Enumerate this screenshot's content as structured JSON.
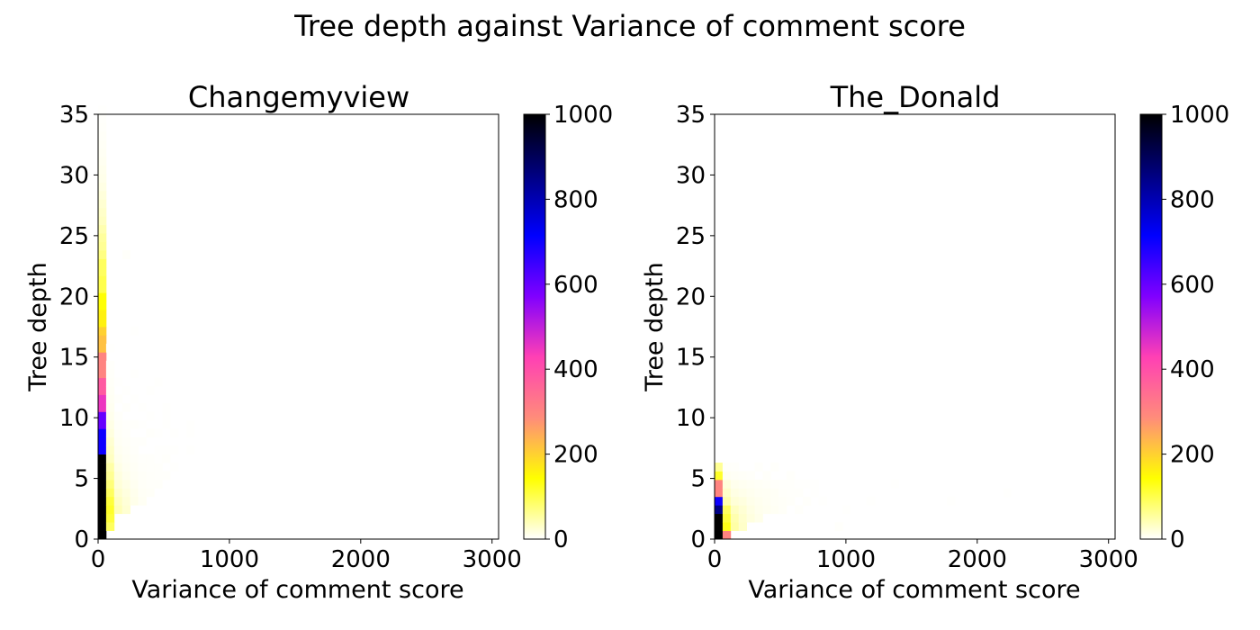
{
  "figure": {
    "title": "Tree depth against Variance of comment score"
  },
  "colormap": {
    "name": "gnuplot2_r",
    "stops": [
      "#ffffff",
      "#ffff00",
      "#ff8c7a",
      "#ff40b4",
      "#8000ff",
      "#0000ff",
      "#000080",
      "#000000"
    ]
  },
  "chart_data": [
    {
      "type": "heatmap",
      "title": "Changemyview",
      "xlabel": "Variance of comment score",
      "ylabel": "Tree depth",
      "xlim": [
        0,
        3050
      ],
      "ylim": [
        0,
        35
      ],
      "x_ticks": [
        0,
        1000,
        2000,
        3000
      ],
      "y_ticks": [
        0,
        5,
        10,
        15,
        20,
        25,
        30,
        35
      ],
      "colorbar": {
        "vmin": 0,
        "vmax": 1000,
        "ticks": [
          0,
          200,
          400,
          600,
          800,
          1000
        ]
      },
      "bin": {
        "dx": 61,
        "dy": 0.7
      },
      "cells": [
        [
          0,
          0,
          1000
        ],
        [
          0,
          1,
          1000
        ],
        [
          0,
          2,
          1000
        ],
        [
          0,
          3,
          1000
        ],
        [
          0,
          4,
          1000
        ],
        [
          0,
          5,
          1000
        ],
        [
          0,
          6,
          1000
        ],
        [
          0,
          7,
          1000
        ],
        [
          0,
          8,
          1000
        ],
        [
          0,
          9,
          1000
        ],
        [
          0,
          10,
          700
        ],
        [
          0,
          11,
          700
        ],
        [
          0,
          12,
          700
        ],
        [
          0,
          13,
          600
        ],
        [
          0,
          14,
          600
        ],
        [
          0,
          15,
          450
        ],
        [
          0,
          16,
          450
        ],
        [
          0,
          17,
          380
        ],
        [
          0,
          18,
          380
        ],
        [
          0,
          19,
          300
        ],
        [
          0,
          20,
          300
        ],
        [
          0,
          21,
          300
        ],
        [
          0,
          22,
          220
        ],
        [
          0,
          23,
          220
        ],
        [
          0,
          24,
          200
        ],
        [
          0,
          25,
          160
        ],
        [
          0,
          26,
          160
        ],
        [
          0,
          27,
          140
        ],
        [
          0,
          28,
          140
        ],
        [
          0,
          29,
          100
        ],
        [
          0,
          30,
          100
        ],
        [
          0,
          31,
          90
        ],
        [
          0,
          32,
          90
        ],
        [
          0,
          33,
          70
        ],
        [
          0,
          34,
          60
        ],
        [
          0,
          35,
          55
        ],
        [
          0,
          36,
          45
        ],
        [
          0,
          37,
          35
        ],
        [
          0,
          38,
          30
        ],
        [
          0,
          39,
          25
        ],
        [
          0,
          40,
          20
        ],
        [
          0,
          41,
          15
        ],
        [
          0,
          42,
          12
        ],
        [
          0,
          43,
          10
        ],
        [
          0,
          44,
          8
        ],
        [
          0,
          45,
          6
        ],
        [
          0,
          46,
          5
        ],
        [
          0,
          47,
          4
        ],
        [
          0,
          48,
          3
        ],
        [
          0,
          49,
          2
        ],
        [
          0,
          50,
          1
        ],
        [
          1,
          1,
          90
        ],
        [
          1,
          2,
          110
        ],
        [
          1,
          3,
          120
        ],
        [
          1,
          4,
          110
        ],
        [
          1,
          5,
          90
        ],
        [
          1,
          6,
          75
        ],
        [
          1,
          7,
          60
        ],
        [
          1,
          8,
          50
        ],
        [
          1,
          9,
          35
        ],
        [
          1,
          10,
          30
        ],
        [
          1,
          11,
          25
        ],
        [
          1,
          12,
          18
        ],
        [
          1,
          13,
          14
        ],
        [
          1,
          14,
          10
        ],
        [
          1,
          15,
          8
        ],
        [
          1,
          16,
          6
        ],
        [
          1,
          17,
          5
        ],
        [
          1,
          18,
          4
        ],
        [
          1,
          19,
          3
        ],
        [
          1,
          20,
          2
        ],
        [
          1,
          22,
          1
        ],
        [
          2,
          3,
          40
        ],
        [
          2,
          4,
          35
        ],
        [
          2,
          5,
          28
        ],
        [
          2,
          6,
          22
        ],
        [
          2,
          7,
          18
        ],
        [
          2,
          8,
          14
        ],
        [
          2,
          9,
          10
        ],
        [
          2,
          10,
          8
        ],
        [
          2,
          11,
          6
        ],
        [
          2,
          12,
          5
        ],
        [
          2,
          13,
          4
        ],
        [
          2,
          14,
          3
        ],
        [
          2,
          16,
          2
        ],
        [
          2,
          18,
          1
        ],
        [
          3,
          3,
          25
        ],
        [
          3,
          4,
          22
        ],
        [
          3,
          5,
          18
        ],
        [
          3,
          6,
          14
        ],
        [
          3,
          7,
          10
        ],
        [
          3,
          8,
          8
        ],
        [
          3,
          9,
          6
        ],
        [
          3,
          10,
          5
        ],
        [
          3,
          11,
          4
        ],
        [
          3,
          12,
          3
        ],
        [
          3,
          13,
          2
        ],
        [
          3,
          15,
          2
        ],
        [
          3,
          17,
          1
        ],
        [
          3,
          33,
          3
        ],
        [
          4,
          4,
          12
        ],
        [
          4,
          5,
          10
        ],
        [
          4,
          6,
          8
        ],
        [
          4,
          7,
          6
        ],
        [
          4,
          8,
          5
        ],
        [
          4,
          9,
          4
        ],
        [
          4,
          10,
          3
        ],
        [
          4,
          11,
          2
        ],
        [
          4,
          13,
          2
        ],
        [
          4,
          16,
          1
        ],
        [
          4,
          19,
          1
        ],
        [
          4,
          24,
          1
        ],
        [
          5,
          4,
          6
        ],
        [
          5,
          5,
          5
        ],
        [
          5,
          6,
          4
        ],
        [
          5,
          7,
          4
        ],
        [
          5,
          8,
          3
        ],
        [
          5,
          9,
          2
        ],
        [
          5,
          11,
          2
        ],
        [
          5,
          13,
          1
        ],
        [
          5,
          15,
          1
        ],
        [
          6,
          5,
          4
        ],
        [
          6,
          6,
          3
        ],
        [
          6,
          7,
          3
        ],
        [
          6,
          8,
          2
        ],
        [
          6,
          9,
          2
        ],
        [
          6,
          12,
          2
        ],
        [
          6,
          14,
          1
        ],
        [
          6,
          17,
          1
        ],
        [
          7,
          6,
          3
        ],
        [
          7,
          7,
          2
        ],
        [
          7,
          8,
          2
        ],
        [
          7,
          9,
          1
        ],
        [
          7,
          10,
          1
        ],
        [
          7,
          12,
          1
        ],
        [
          7,
          18,
          1
        ],
        [
          8,
          7,
          2
        ],
        [
          8,
          9,
          2
        ],
        [
          8,
          10,
          1
        ],
        [
          8,
          13,
          1
        ],
        [
          8,
          14,
          1
        ],
        [
          8,
          15,
          1
        ],
        [
          9,
          8,
          1
        ],
        [
          9,
          10,
          1
        ],
        [
          9,
          12,
          1
        ],
        [
          11,
          10,
          1
        ],
        [
          11,
          12,
          1
        ],
        [
          11,
          13,
          1
        ]
      ]
    },
    {
      "type": "heatmap",
      "title": "The_Donald",
      "xlabel": "Variance of comment score",
      "ylabel": "Tree depth",
      "xlim": [
        0,
        3050
      ],
      "ylim": [
        0,
        35
      ],
      "x_ticks": [
        0,
        1000,
        2000,
        3000
      ],
      "y_ticks": [
        0,
        5,
        10,
        15,
        20,
        25,
        30,
        35
      ],
      "colorbar": {
        "vmin": 0,
        "vmax": 1000,
        "ticks": [
          0,
          200,
          400,
          600,
          800,
          1000
        ]
      },
      "bin": {
        "dx": 61,
        "dy": 0.7
      },
      "cells": [
        [
          0,
          0,
          1000
        ],
        [
          0,
          1,
          1000
        ],
        [
          0,
          2,
          1000
        ],
        [
          0,
          3,
          850
        ],
        [
          0,
          4,
          700
        ],
        [
          0,
          5,
          300
        ],
        [
          0,
          6,
          300
        ],
        [
          0,
          7,
          120
        ],
        [
          0,
          8,
          60
        ],
        [
          1,
          0,
          300
        ],
        [
          1,
          1,
          130
        ],
        [
          1,
          2,
          110
        ],
        [
          1,
          3,
          90
        ],
        [
          1,
          4,
          45
        ],
        [
          1,
          5,
          30
        ],
        [
          1,
          6,
          20
        ],
        [
          1,
          7,
          8
        ],
        [
          1,
          8,
          3
        ],
        [
          2,
          1,
          50
        ],
        [
          2,
          2,
          45
        ],
        [
          2,
          3,
          35
        ],
        [
          2,
          4,
          22
        ],
        [
          2,
          5,
          15
        ],
        [
          2,
          6,
          10
        ],
        [
          2,
          7,
          5
        ],
        [
          2,
          8,
          2
        ],
        [
          3,
          1,
          30
        ],
        [
          3,
          2,
          28
        ],
        [
          3,
          3,
          24
        ],
        [
          3,
          4,
          18
        ],
        [
          3,
          5,
          12
        ],
        [
          3,
          6,
          8
        ],
        [
          3,
          7,
          4
        ],
        [
          4,
          2,
          18
        ],
        [
          4,
          3,
          15
        ],
        [
          4,
          4,
          12
        ],
        [
          4,
          5,
          9
        ],
        [
          4,
          6,
          6
        ],
        [
          4,
          7,
          3
        ],
        [
          5,
          2,
          12
        ],
        [
          5,
          3,
          10
        ],
        [
          5,
          4,
          9
        ],
        [
          5,
          5,
          7
        ],
        [
          5,
          6,
          5
        ],
        [
          5,
          8,
          2
        ],
        [
          6,
          3,
          8
        ],
        [
          6,
          4,
          7
        ],
        [
          6,
          5,
          6
        ],
        [
          6,
          6,
          4
        ],
        [
          6,
          7,
          3
        ],
        [
          7,
          3,
          6
        ],
        [
          7,
          4,
          5
        ],
        [
          7,
          5,
          5
        ],
        [
          7,
          6,
          3
        ],
        [
          7,
          8,
          2
        ],
        [
          8,
          3,
          4
        ],
        [
          8,
          4,
          4
        ],
        [
          8,
          5,
          3
        ],
        [
          8,
          6,
          2
        ],
        [
          9,
          4,
          3
        ],
        [
          9,
          5,
          2
        ],
        [
          9,
          6,
          2
        ],
        [
          9,
          7,
          2
        ],
        [
          10,
          3,
          2
        ],
        [
          10,
          5,
          2
        ],
        [
          10,
          6,
          1
        ],
        [
          11,
          4,
          2
        ],
        [
          11,
          6,
          1
        ],
        [
          12,
          5,
          1
        ],
        [
          12,
          6,
          1
        ],
        [
          13,
          4,
          1
        ],
        [
          15,
          1,
          2
        ],
        [
          16,
          3,
          1
        ],
        [
          19,
          4,
          1
        ],
        [
          22,
          6,
          1
        ],
        [
          29,
          4,
          1
        ],
        [
          36,
          5,
          1
        ]
      ]
    }
  ]
}
